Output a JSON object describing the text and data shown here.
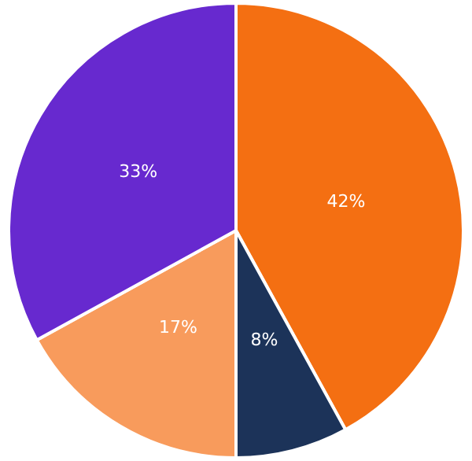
{
  "chart_data": {
    "type": "pie",
    "categories": [
      null,
      null,
      null,
      null
    ],
    "values": [
      42,
      8,
      17,
      33
    ],
    "colors": [
      "#f46f12",
      "#1c3359",
      "#f89b5c",
      "#6729cf"
    ],
    "value_labels": [
      "42%",
      "8%",
      "17%",
      "33%"
    ],
    "legend": false
  }
}
